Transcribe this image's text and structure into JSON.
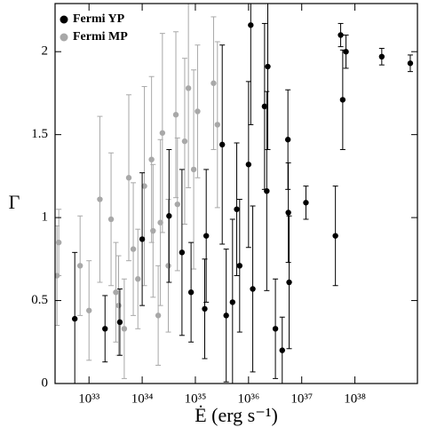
{
  "chart_data": {
    "type": "scatter",
    "x_label": "Ė (erg s⁻¹)",
    "y_label": "Γ",
    "xscale": "log",
    "legend": "upper-left",
    "xlim": [
      2.3e+32,
      1.5e+39
    ],
    "ylim": [
      0,
      2.29
    ],
    "xticks": [
      {
        "value": 1e+33,
        "label": "10³³"
      },
      {
        "value": 1e+34,
        "label": "10³⁴"
      },
      {
        "value": 1e+35,
        "label": "10³⁵"
      },
      {
        "value": 1e+36,
        "label": "10³⁶"
      },
      {
        "value": 1e+37,
        "label": "10³⁷"
      },
      {
        "value": 1e+38,
        "label": "10³⁸"
      }
    ],
    "yticks": [
      0,
      0.5,
      1,
      1.5,
      2
    ],
    "series": [
      {
        "name": "Fermi MP",
        "color": "#a8a8a8",
        "x": [
          2.7e+32,
          2.5e+32,
          6.8e+32,
          1.6e+33,
          2.6e+33,
          3.2e+33,
          4.6e+33,
          5.6e+33,
          8.3e+33,
          1.1e+34,
          1.5e+34,
          1.6e+34,
          2e+34,
          2.4e+34,
          3.1e+34,
          4.3e+34,
          4.6e+34,
          6.3e+34,
          7.4e+34,
          9.3e+34,
          1.1e+35,
          2.2e+35,
          2.6e+35,
          2.2e+34,
          6.8e+33,
          1e+33,
          3.6e+33
        ],
        "values": [
          0.85,
          0.65,
          0.71,
          1.11,
          0.99,
          0.55,
          0.33,
          1.24,
          0.63,
          1.19,
          1.35,
          0.92,
          0.41,
          1.51,
          0.71,
          1.62,
          1.08,
          1.46,
          1.78,
          1.29,
          1.64,
          1.81,
          1.56,
          0.97,
          0.81,
          0.44,
          0.47
        ],
        "errors": [
          0.2,
          0.3,
          0.3,
          0.5,
          0.4,
          0.3,
          0.3,
          0.5,
          0.3,
          0.6,
          0.5,
          0.4,
          0.3,
          0.6,
          0.4,
          0.5,
          0.4,
          0.5,
          0.6,
          0.6,
          0.4,
          0.4,
          0.5,
          0.5,
          0.4,
          0.3,
          0.3
        ]
      },
      {
        "name": "Fermi YP",
        "color": "#000000",
        "x": [
          1.1e+39,
          3.2e+38,
          5.4e+37,
          6.8e+37,
          5.9e+37,
          4.3e+37,
          1.2e+37,
          5.6e+36,
          5.5e+36,
          2e+36,
          2.2e+36,
          1.1e+36,
          1.2e+36,
          5e+35,
          4.3e+36,
          5.8e+36,
          3.2e+36,
          6.8e+35,
          6e+35,
          3.2e+35,
          3.8e+35,
          1.5e+35,
          1.6e+35,
          5.6e+34,
          3.2e+34,
          1e+34,
          3.8e+33,
          2e+33,
          5.4e+32,
          8.3e+34,
          2.3e+36,
          1e+36
        ],
        "values": [
          1.93,
          1.97,
          2.1,
          2.0,
          1.71,
          0.89,
          1.09,
          1.03,
          1.47,
          1.67,
          1.16,
          2.16,
          0.57,
          0.49,
          0.2,
          0.61,
          0.33,
          0.71,
          1.05,
          1.44,
          0.41,
          0.45,
          0.89,
          0.79,
          1.01,
          0.87,
          0.37,
          0.33,
          0.39,
          0.55,
          1.91,
          1.32
        ],
        "errors": [
          0.05,
          0.05,
          0.07,
          0.1,
          0.3,
          0.3,
          0.1,
          0.3,
          0.3,
          0.5,
          0.6,
          0.6,
          0.5,
          0.5,
          0.2,
          0.4,
          0.3,
          0.4,
          0.4,
          0.6,
          0.4,
          0.3,
          0.4,
          0.5,
          0.4,
          0.4,
          0.2,
          0.2,
          0.4,
          0.3,
          0.5,
          0.5
        ]
      }
    ]
  }
}
